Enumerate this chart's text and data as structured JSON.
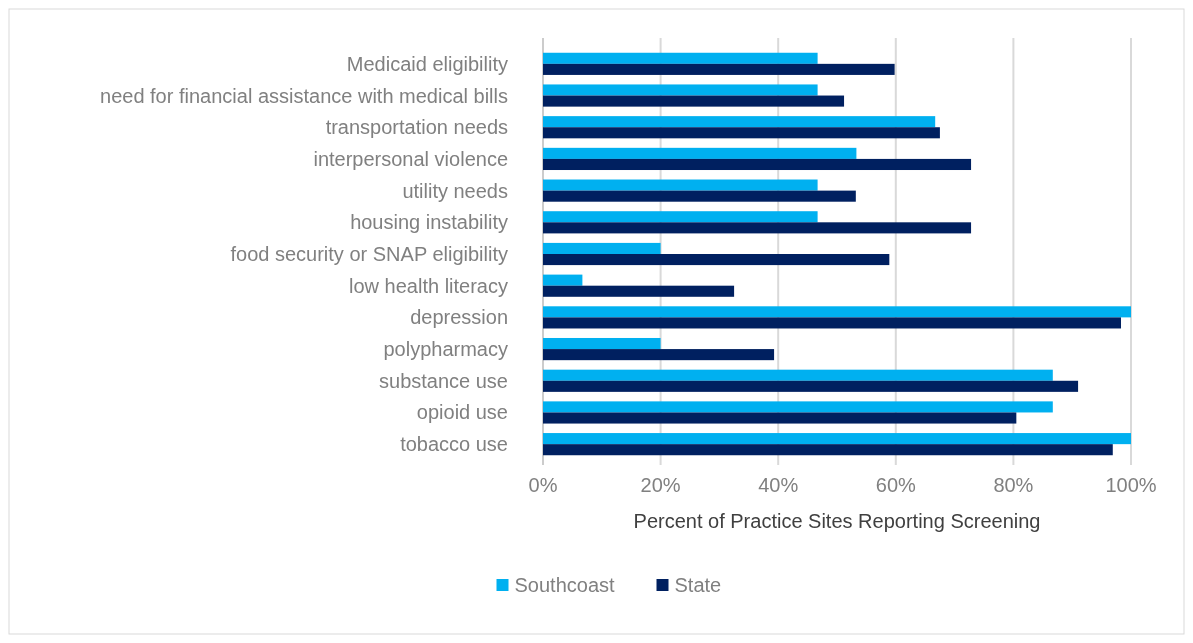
{
  "chart_data": {
    "type": "bar",
    "orientation": "horizontal",
    "xlabel": "Percent of Practice Sites Reporting Screening",
    "categories": [
      "Medicaid eligibility",
      "need for financial assistance with medical bills",
      "transportation needs",
      "interpersonal violence",
      "utility needs",
      "housing instability",
      "food security or SNAP eligibility",
      "low health literacy",
      "depression",
      "polypharmacy",
      "substance use",
      "opioid use",
      "tobacco use"
    ],
    "series": [
      {
        "name": "Southcoast",
        "color": "#00b0f0",
        "values": [
          46.7,
          46.7,
          66.7,
          53.3,
          46.7,
          46.7,
          20,
          6.7,
          100,
          20,
          86.7,
          86.7,
          100
        ]
      },
      {
        "name": "State",
        "color": "#002060",
        "values": [
          59.8,
          51.2,
          67.5,
          72.8,
          53.2,
          72.8,
          58.9,
          32.5,
          98.3,
          39.3,
          91,
          80.5,
          96.9
        ]
      }
    ],
    "xlim": [
      0,
      100
    ],
    "xticks": [
      {
        "value": 0,
        "label": "0%"
      },
      {
        "value": 20,
        "label": "20%"
      },
      {
        "value": 40,
        "label": "40%"
      },
      {
        "value": 60,
        "label": "60%"
      },
      {
        "value": 80,
        "label": "80%"
      },
      {
        "value": 100,
        "label": "100%"
      }
    ],
    "grid": "x",
    "legend": "bottom"
  }
}
